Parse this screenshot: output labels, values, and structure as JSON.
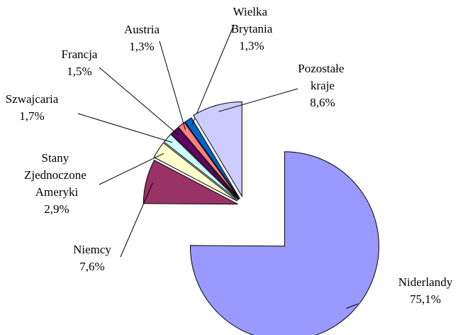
{
  "chart_data": {
    "type": "pie",
    "categories": [
      "Niderlandy",
      "Niemcy",
      "Stany Zjednoczone Ameryki",
      "Szwajcaria",
      "Francja",
      "Austria",
      "Wielka Brytania",
      "Pozostałe kraje"
    ],
    "values": [
      75.1,
      7.6,
      2.9,
      1.7,
      1.5,
      1.3,
      1.3,
      8.6
    ],
    "value_labels": [
      "75,1%",
      "7,6%",
      "2,9%",
      "1,7%",
      "1,5%",
      "1,3%",
      "1,3%",
      "8,6%"
    ],
    "colors": [
      "#9999ff",
      "#993366",
      "#ffffcc",
      "#ccffff",
      "#660066",
      "#ff8080",
      "#0066cc",
      "#ccccff"
    ]
  }
}
